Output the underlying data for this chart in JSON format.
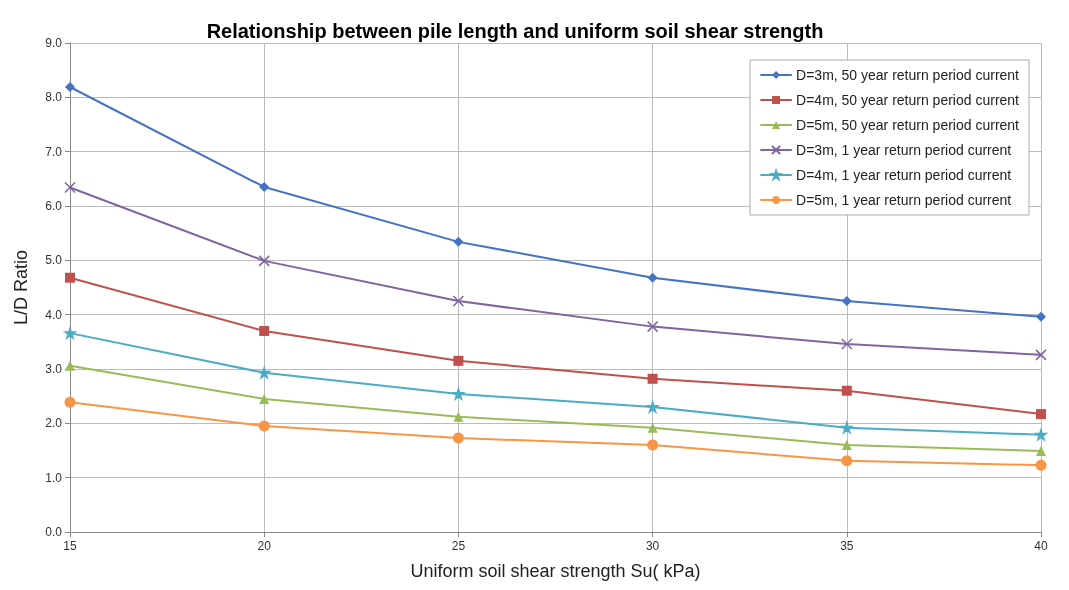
{
  "chart_data": {
    "type": "line",
    "title": "Relationship between pile length and uniform soil shear strength",
    "xlabel": "Uniform soil shear strength Su( kPa)",
    "ylabel": "L/D Ratio",
    "x": [
      15,
      20,
      25,
      30,
      35,
      40
    ],
    "series": [
      {
        "name": "D=3m, 50 year return period current",
        "color": "#4472c4",
        "marker": "diamond",
        "values": [
          8.19,
          6.35,
          5.34,
          4.68,
          4.25,
          3.96
        ]
      },
      {
        "name": "D=4m, 50 year return period current",
        "color": "#c0504d",
        "marker": "square",
        "values": [
          4.68,
          3.7,
          3.15,
          2.82,
          2.6,
          2.17
        ]
      },
      {
        "name": "D=5m, 50 year return period current",
        "color": "#9bbb59",
        "marker": "triangle",
        "values": [
          3.06,
          2.45,
          2.12,
          1.92,
          1.6,
          1.49
        ]
      },
      {
        "name": "D=3m, 1 year return period current",
        "color": "#8064a2",
        "marker": "cross",
        "values": [
          6.34,
          4.99,
          4.25,
          3.78,
          3.46,
          3.26
        ]
      },
      {
        "name": "D=4m, 1 year return period current",
        "color": "#4bacc6",
        "marker": "star",
        "values": [
          3.66,
          2.93,
          2.54,
          2.3,
          1.92,
          1.79
        ]
      },
      {
        "name": "D=5m, 1 year return period current",
        "color": "#f79646",
        "marker": "circle",
        "values": [
          2.39,
          1.95,
          1.73,
          1.6,
          1.31,
          1.23
        ]
      }
    ],
    "xlim": [
      15,
      40
    ],
    "xticks": [
      15,
      20,
      25,
      30,
      35,
      40
    ],
    "ylim": [
      0,
      9
    ],
    "yticks": [
      {
        "value": 0,
        "label": "0.0"
      },
      {
        "value": 1,
        "label": "1.0"
      },
      {
        "value": 2,
        "label": "2.0"
      },
      {
        "value": 3,
        "label": "3.0"
      },
      {
        "value": 4,
        "label": "4.0"
      },
      {
        "value": 5,
        "label": "5.0"
      },
      {
        "value": 6,
        "label": "6.0"
      },
      {
        "value": 7,
        "label": "7.0"
      },
      {
        "value": 8,
        "label": "8.0"
      },
      {
        "value": 9,
        "label": "9.0"
      }
    ],
    "grid": true,
    "legend": "top right",
    "line_style": "solid"
  }
}
